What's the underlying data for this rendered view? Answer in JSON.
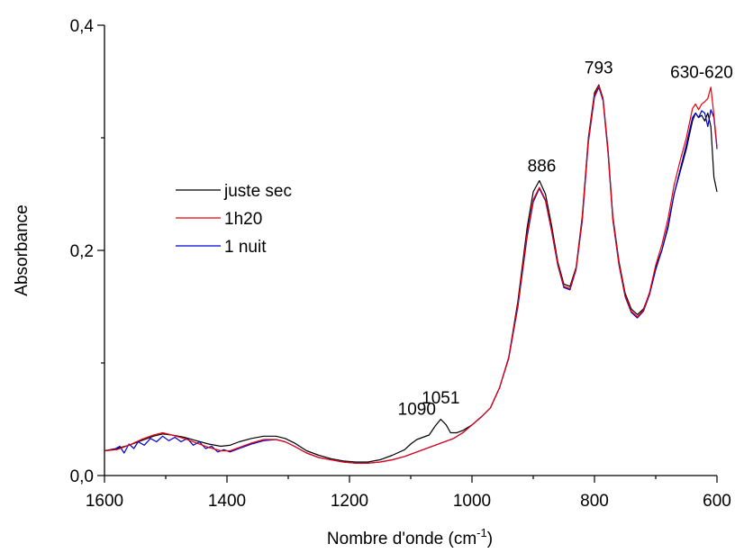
{
  "chart_data": {
    "type": "line",
    "xlabel": "Nombre d'onde (cm",
    "xlabel_sup": "-1",
    "xlabel_close": ")",
    "ylabel": "Absorbance",
    "xlim": [
      1600,
      600
    ],
    "ylim": [
      0.0,
      0.4
    ],
    "x_reversed": true,
    "grid": false,
    "legend_position": "left",
    "x_ticks": [
      1600,
      1400,
      1200,
      1000,
      800,
      600
    ],
    "x_minor_ticks": [
      1500,
      1300,
      1100,
      900,
      700
    ],
    "y_ticks": [
      {
        "value": 0.0,
        "label": "0,0"
      },
      {
        "value": 0.2,
        "label": "0,2"
      },
      {
        "value": 0.4,
        "label": "0,4"
      }
    ],
    "y_minor_ticks": [
      0.1,
      0.3
    ],
    "annotations": [
      {
        "text": "1090",
        "x": 1090,
        "y": 0.051
      },
      {
        "text": "1051",
        "x": 1051,
        "y": 0.061
      },
      {
        "text": "886",
        "x": 886,
        "y": 0.267
      },
      {
        "text": "793",
        "x": 793,
        "y": 0.354
      },
      {
        "text": "630-620",
        "x": 625,
        "y": 0.35
      }
    ],
    "series": [
      {
        "name": "juste sec",
        "color": "#000000",
        "x": [
          1600,
          1580,
          1560,
          1540,
          1520,
          1505,
          1490,
          1470,
          1450,
          1430,
          1410,
          1395,
          1380,
          1360,
          1340,
          1320,
          1305,
          1290,
          1270,
          1250,
          1230,
          1210,
          1190,
          1170,
          1150,
          1130,
          1110,
          1100,
          1090,
          1080,
          1070,
          1060,
          1051,
          1042,
          1035,
          1025,
          1015,
          1000,
          985,
          970,
          955,
          940,
          925,
          910,
          900,
          890,
          880,
          870,
          860,
          850,
          840,
          830,
          820,
          810,
          800,
          793,
          786,
          778,
          770,
          760,
          750,
          740,
          730,
          720,
          710,
          700,
          690,
          680,
          670,
          660,
          650,
          640,
          635,
          630,
          625,
          620,
          615,
          610,
          605,
          600
        ],
        "y": [
          0.022,
          0.024,
          0.027,
          0.031,
          0.035,
          0.037,
          0.036,
          0.034,
          0.031,
          0.028,
          0.026,
          0.027,
          0.03,
          0.033,
          0.035,
          0.035,
          0.033,
          0.029,
          0.022,
          0.018,
          0.015,
          0.013,
          0.012,
          0.012,
          0.014,
          0.018,
          0.023,
          0.028,
          0.032,
          0.034,
          0.036,
          0.044,
          0.05,
          0.045,
          0.038,
          0.038,
          0.04,
          0.045,
          0.052,
          0.06,
          0.078,
          0.105,
          0.155,
          0.22,
          0.252,
          0.262,
          0.25,
          0.222,
          0.19,
          0.17,
          0.168,
          0.185,
          0.23,
          0.3,
          0.34,
          0.347,
          0.335,
          0.29,
          0.23,
          0.19,
          0.162,
          0.148,
          0.143,
          0.148,
          0.162,
          0.185,
          0.2,
          0.22,
          0.25,
          0.27,
          0.29,
          0.315,
          0.322,
          0.318,
          0.32,
          0.315,
          0.322,
          0.31,
          0.265,
          0.252
        ]
      },
      {
        "name": "1h20",
        "color": "#e8000b",
        "x": [
          1600,
          1580,
          1560,
          1540,
          1520,
          1505,
          1490,
          1470,
          1450,
          1430,
          1410,
          1395,
          1380,
          1360,
          1340,
          1320,
          1305,
          1290,
          1270,
          1250,
          1230,
          1210,
          1190,
          1170,
          1150,
          1130,
          1110,
          1090,
          1070,
          1050,
          1030,
          1015,
          1000,
          985,
          970,
          955,
          940,
          925,
          910,
          900,
          890,
          880,
          870,
          860,
          850,
          840,
          830,
          820,
          810,
          800,
          793,
          786,
          778,
          770,
          760,
          750,
          740,
          730,
          720,
          710,
          700,
          690,
          680,
          670,
          660,
          650,
          640,
          635,
          630,
          625,
          620,
          615,
          610,
          605,
          600
        ],
        "y": [
          0.022,
          0.023,
          0.027,
          0.032,
          0.036,
          0.038,
          0.036,
          0.033,
          0.029,
          0.025,
          0.022,
          0.022,
          0.025,
          0.029,
          0.032,
          0.032,
          0.03,
          0.026,
          0.02,
          0.016,
          0.014,
          0.012,
          0.011,
          0.011,
          0.012,
          0.014,
          0.017,
          0.021,
          0.025,
          0.029,
          0.033,
          0.038,
          0.045,
          0.052,
          0.06,
          0.078,
          0.105,
          0.152,
          0.215,
          0.245,
          0.256,
          0.245,
          0.218,
          0.188,
          0.168,
          0.166,
          0.184,
          0.228,
          0.298,
          0.338,
          0.346,
          0.334,
          0.288,
          0.228,
          0.188,
          0.16,
          0.146,
          0.141,
          0.147,
          0.163,
          0.187,
          0.205,
          0.228,
          0.258,
          0.28,
          0.3,
          0.326,
          0.33,
          0.325,
          0.33,
          0.332,
          0.335,
          0.345,
          0.32,
          0.292
        ]
      },
      {
        "name": "1 nuit",
        "color": "#0000d0",
        "x": [
          1600,
          1585,
          1575,
          1568,
          1560,
          1552,
          1545,
          1535,
          1525,
          1515,
          1505,
          1495,
          1485,
          1475,
          1465,
          1455,
          1445,
          1435,
          1425,
          1415,
          1405,
          1395,
          1380,
          1360,
          1340,
          1320,
          1305,
          1290,
          1270,
          1250,
          1230,
          1210,
          1190,
          1170,
          1150,
          1130,
          1110,
          1090,
          1070,
          1050,
          1030,
          1015,
          1000,
          985,
          970,
          955,
          940,
          925,
          910,
          900,
          890,
          880,
          870,
          860,
          850,
          840,
          830,
          820,
          810,
          800,
          793,
          786,
          778,
          770,
          760,
          750,
          740,
          730,
          720,
          710,
          700,
          690,
          680,
          670,
          660,
          650,
          640,
          635,
          630,
          625,
          620,
          615,
          610,
          605,
          600
        ],
        "y": [
          0.022,
          0.023,
          0.026,
          0.02,
          0.028,
          0.024,
          0.03,
          0.027,
          0.033,
          0.03,
          0.035,
          0.031,
          0.034,
          0.03,
          0.033,
          0.027,
          0.03,
          0.024,
          0.026,
          0.021,
          0.023,
          0.021,
          0.024,
          0.028,
          0.031,
          0.032,
          0.03,
          0.026,
          0.02,
          0.016,
          0.014,
          0.012,
          0.011,
          0.011,
          0.012,
          0.014,
          0.017,
          0.021,
          0.025,
          0.029,
          0.033,
          0.038,
          0.045,
          0.052,
          0.06,
          0.078,
          0.104,
          0.15,
          0.212,
          0.243,
          0.255,
          0.244,
          0.217,
          0.187,
          0.167,
          0.165,
          0.183,
          0.226,
          0.296,
          0.336,
          0.345,
          0.333,
          0.287,
          0.227,
          0.187,
          0.159,
          0.145,
          0.14,
          0.146,
          0.161,
          0.183,
          0.2,
          0.222,
          0.25,
          0.272,
          0.294,
          0.318,
          0.322,
          0.318,
          0.324,
          0.322,
          0.31,
          0.325,
          0.318,
          0.29
        ]
      }
    ]
  }
}
